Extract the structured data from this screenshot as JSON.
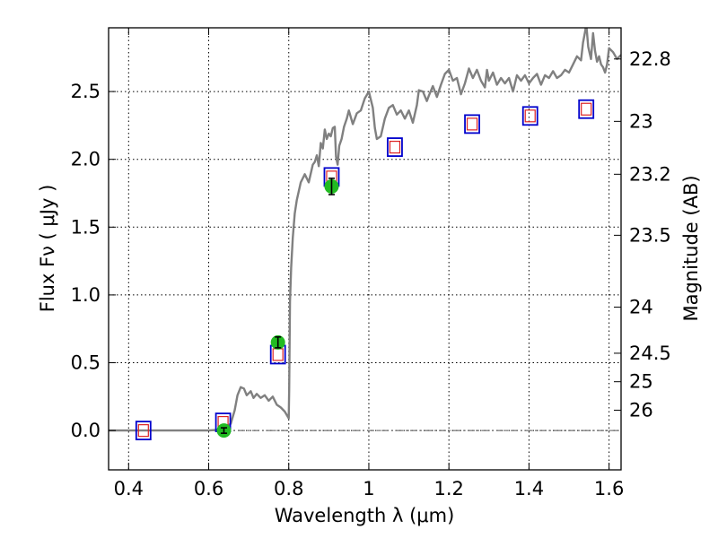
{
  "chart_data": {
    "type": "scatter",
    "title": "",
    "xlabel": "Wavelength  λ (μm)",
    "ylabel": "Flux  Fν  ( μJy )",
    "y2label": "Magnitude (AB)",
    "xlim": [
      0.35,
      1.63
    ],
    "ylim": [
      -0.29,
      2.97
    ],
    "grid": true,
    "x_ticks": [
      0.4,
      0.6,
      0.8,
      1.0,
      1.2,
      1.4,
      1.6
    ],
    "x_tick_labels": [
      "0.4",
      "0.6",
      "0.8",
      "1",
      "1.2",
      "1.4",
      "1.6"
    ],
    "y_ticks": [
      0.0,
      0.5,
      1.0,
      1.5,
      2.0,
      2.5
    ],
    "y_tick_labels": [
      "0.0",
      "0.5",
      "1.0",
      "1.5",
      "2.0",
      "2.5"
    ],
    "right_axis": {
      "ticks": [
        {
          "label": "22.8",
          "flux": 2.74
        },
        {
          "label": "23",
          "flux": 2.28
        },
        {
          "label": "23.2",
          "flux": 1.89
        },
        {
          "label": "23.5",
          "flux": 1.44
        },
        {
          "label": "24",
          "flux": 0.91
        },
        {
          "label": "24.5",
          "flux": 0.57
        },
        {
          "label": "25",
          "flux": 0.36
        },
        {
          "label": "26",
          "flux": 0.15
        }
      ]
    },
    "colors": {
      "spectrum": "#808080",
      "model_box": "#0000cc",
      "model_box_inner": "#dd2222",
      "observed": "#22bb22",
      "error_bar": "#000000",
      "zero_line": "#555555"
    },
    "series": [
      {
        "kind": "model_spectrum",
        "points": [
          [
            0.35,
            0.0
          ],
          [
            0.4,
            0.0
          ],
          [
            0.45,
            0.0
          ],
          [
            0.5,
            0.0
          ],
          [
            0.55,
            0.0
          ],
          [
            0.6,
            0.0
          ],
          [
            0.62,
            0.005
          ],
          [
            0.64,
            0.02
          ],
          [
            0.655,
            0.05
          ],
          [
            0.665,
            0.15
          ],
          [
            0.672,
            0.26
          ],
          [
            0.68,
            0.32
          ],
          [
            0.688,
            0.31
          ],
          [
            0.695,
            0.26
          ],
          [
            0.705,
            0.29
          ],
          [
            0.712,
            0.24
          ],
          [
            0.72,
            0.27
          ],
          [
            0.73,
            0.24
          ],
          [
            0.74,
            0.26
          ],
          [
            0.75,
            0.22
          ],
          [
            0.76,
            0.25
          ],
          [
            0.77,
            0.19
          ],
          [
            0.78,
            0.17
          ],
          [
            0.79,
            0.14
          ],
          [
            0.8,
            0.09
          ],
          [
            0.801,
            0.3
          ],
          [
            0.803,
            0.95
          ],
          [
            0.806,
            1.2
          ],
          [
            0.81,
            1.42
          ],
          [
            0.815,
            1.6
          ],
          [
            0.82,
            1.7
          ],
          [
            0.83,
            1.83
          ],
          [
            0.84,
            1.89
          ],
          [
            0.85,
            1.83
          ],
          [
            0.86,
            1.96
          ],
          [
            0.865,
            1.98
          ],
          [
            0.87,
            2.03
          ],
          [
            0.875,
            1.95
          ],
          [
            0.88,
            2.12
          ],
          [
            0.885,
            2.08
          ],
          [
            0.89,
            2.22
          ],
          [
            0.895,
            2.15
          ],
          [
            0.9,
            2.19
          ],
          [
            0.905,
            2.17
          ],
          [
            0.91,
            2.23
          ],
          [
            0.915,
            2.24
          ],
          [
            0.918,
            2.02
          ],
          [
            0.922,
            1.96
          ],
          [
            0.926,
            2.1
          ],
          [
            0.932,
            2.15
          ],
          [
            0.938,
            2.24
          ],
          [
            0.945,
            2.3
          ],
          [
            0.95,
            2.36
          ],
          [
            0.96,
            2.26
          ],
          [
            0.97,
            2.34
          ],
          [
            0.98,
            2.36
          ],
          [
            0.99,
            2.45
          ],
          [
            1.0,
            2.5
          ],
          [
            1.005,
            2.44
          ],
          [
            1.01,
            2.38
          ],
          [
            1.015,
            2.23
          ],
          [
            1.02,
            2.15
          ],
          [
            1.03,
            2.17
          ],
          [
            1.04,
            2.3
          ],
          [
            1.05,
            2.38
          ],
          [
            1.06,
            2.4
          ],
          [
            1.07,
            2.33
          ],
          [
            1.08,
            2.36
          ],
          [
            1.09,
            2.3
          ],
          [
            1.1,
            2.36
          ],
          [
            1.11,
            2.27
          ],
          [
            1.12,
            2.4
          ],
          [
            1.125,
            2.51
          ],
          [
            1.135,
            2.5
          ],
          [
            1.145,
            2.43
          ],
          [
            1.15,
            2.47
          ],
          [
            1.16,
            2.54
          ],
          [
            1.17,
            2.46
          ],
          [
            1.18,
            2.55
          ],
          [
            1.19,
            2.63
          ],
          [
            1.2,
            2.66
          ],
          [
            1.21,
            2.58
          ],
          [
            1.22,
            2.6
          ],
          [
            1.23,
            2.48
          ],
          [
            1.24,
            2.56
          ],
          [
            1.25,
            2.67
          ],
          [
            1.26,
            2.6
          ],
          [
            1.27,
            2.66
          ],
          [
            1.28,
            2.58
          ],
          [
            1.29,
            2.53
          ],
          [
            1.295,
            2.66
          ],
          [
            1.3,
            2.58
          ],
          [
            1.31,
            2.64
          ],
          [
            1.32,
            2.55
          ],
          [
            1.33,
            2.6
          ],
          [
            1.34,
            2.56
          ],
          [
            1.35,
            2.6
          ],
          [
            1.36,
            2.5
          ],
          [
            1.37,
            2.62
          ],
          [
            1.38,
            2.58
          ],
          [
            1.39,
            2.62
          ],
          [
            1.4,
            2.56
          ],
          [
            1.41,
            2.6
          ],
          [
            1.42,
            2.63
          ],
          [
            1.43,
            2.55
          ],
          [
            1.44,
            2.62
          ],
          [
            1.45,
            2.6
          ],
          [
            1.46,
            2.65
          ],
          [
            1.47,
            2.6
          ],
          [
            1.48,
            2.62
          ],
          [
            1.49,
            2.66
          ],
          [
            1.5,
            2.64
          ],
          [
            1.51,
            2.7
          ],
          [
            1.52,
            2.76
          ],
          [
            1.53,
            2.73
          ],
          [
            1.535,
            2.86
          ],
          [
            1.54,
            2.94
          ],
          [
            1.543,
            3.0
          ],
          [
            1.548,
            2.83
          ],
          [
            1.555,
            2.74
          ],
          [
            1.56,
            2.93
          ],
          [
            1.565,
            2.8
          ],
          [
            1.57,
            2.72
          ],
          [
            1.575,
            2.76
          ],
          [
            1.58,
            2.7
          ],
          [
            1.585,
            2.68
          ],
          [
            1.59,
            2.64
          ],
          [
            1.595,
            2.7
          ],
          [
            1.6,
            2.82
          ],
          [
            1.61,
            2.79
          ],
          [
            1.62,
            2.74
          ],
          [
            1.63,
            2.77
          ]
        ]
      },
      {
        "kind": "model_photometry",
        "points": [
          {
            "x": 0.437,
            "y": 0.0
          },
          {
            "x": 0.636,
            "y": 0.06
          },
          {
            "x": 0.773,
            "y": 0.56
          },
          {
            "x": 0.907,
            "y": 1.87
          },
          {
            "x": 1.065,
            "y": 2.09
          },
          {
            "x": 1.258,
            "y": 2.26
          },
          {
            "x": 1.403,
            "y": 2.32
          },
          {
            "x": 1.543,
            "y": 2.37
          }
        ]
      },
      {
        "kind": "observed_photometry",
        "points": [
          {
            "x": 0.638,
            "y": 0.0,
            "err": 0.02
          },
          {
            "x": 0.773,
            "y": 0.65,
            "err": 0.04
          },
          {
            "x": 0.907,
            "y": 1.8,
            "err": 0.06
          }
        ]
      }
    ]
  }
}
